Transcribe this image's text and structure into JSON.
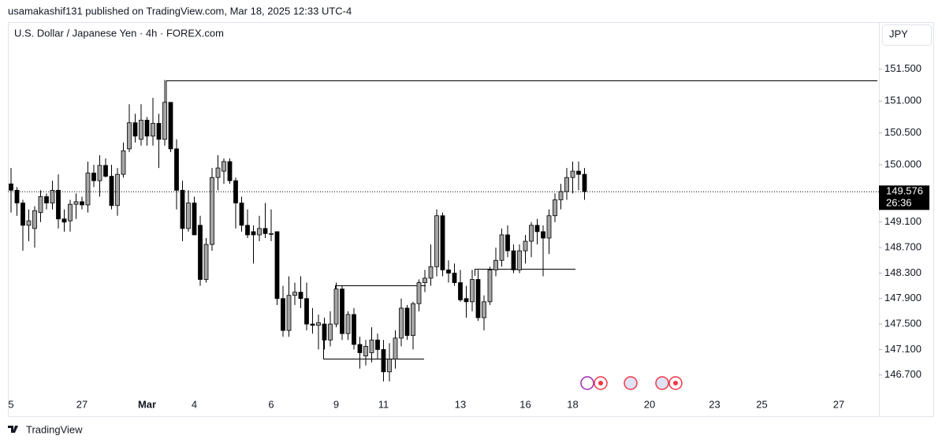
{
  "header": {
    "published": "usamakashif131 published on TradingView.com, Mar 18, 2025 12:33 UTC-4"
  },
  "footer": {
    "brand": "TradingView"
  },
  "chart_data": {
    "type": "candlestick",
    "title": "U.S. Dollar / Japanese Yen · 4h · FOREX.com",
    "currency": "JPY",
    "up_color": "#a5a5a5",
    "down_color": "#000000",
    "last_price": 149.576,
    "countdown": "26:36",
    "ylim": [
      146.4,
      152.24
    ],
    "yticks": [
      {
        "value": 146.7,
        "label": "146.700"
      },
      {
        "value": 147.1,
        "label": "147.100"
      },
      {
        "value": 147.5,
        "label": "147.500"
      },
      {
        "value": 147.9,
        "label": "147.900"
      },
      {
        "value": 148.3,
        "label": "148.300"
      },
      {
        "value": 148.7,
        "label": "148.700"
      },
      {
        "value": 149.1,
        "label": "149.100"
      },
      {
        "value": 150.0,
        "label": "150.000"
      },
      {
        "value": 150.5,
        "label": "150.500"
      },
      {
        "value": 151.0,
        "label": "151.000"
      },
      {
        "value": 151.5,
        "label": "151.500"
      }
    ],
    "categories": [
      "5",
      null,
      null,
      null,
      null,
      null,
      null,
      null,
      null,
      null,
      null,
      null,
      "27",
      null,
      null,
      null,
      null,
      null,
      null,
      null,
      null,
      null,
      null,
      "Mar",
      null,
      null,
      null,
      null,
      null,
      null,
      null,
      "4",
      null,
      null,
      null,
      null,
      null,
      null,
      null,
      null,
      null,
      null,
      null,
      null,
      "6",
      null,
      null,
      null,
      null,
      null,
      null,
      null,
      null,
      null,
      null,
      "9",
      null,
      null,
      null,
      null,
      null,
      null,
      null,
      "11",
      null,
      null,
      null,
      null,
      null,
      null,
      null,
      null,
      null,
      null,
      null,
      null,
      "13",
      null,
      null,
      null,
      null,
      null,
      null,
      null,
      null,
      null,
      null,
      "16",
      null,
      null,
      null,
      null,
      null,
      null,
      null,
      "18",
      null,
      null,
      null,
      null,
      null,
      null,
      null,
      null,
      null,
      null,
      null,
      null,
      "20",
      null,
      null,
      null,
      null,
      null,
      null,
      null,
      null,
      null,
      null,
      "23",
      null,
      null,
      null,
      null,
      null,
      null,
      null,
      "25",
      null,
      null,
      null,
      null,
      null,
      null,
      null,
      null,
      null,
      null,
      null,
      null,
      "27"
    ],
    "open": [
      149.7,
      149.6,
      149.4,
      149.05,
      149.0,
      149.25,
      149.5,
      149.4,
      149.6,
      149.15,
      149.12,
      149.38,
      149.42,
      149.37,
      149.87,
      149.75,
      149.99,
      149.82,
      149.36,
      149.85,
      150.25,
      150.66,
      150.4,
      150.7,
      150.45,
      150.65,
      150.4,
      150.98,
      150.25,
      149.6,
      149.0,
      149.4,
      149.05,
      148.2,
      148.75,
      149.8,
      149.9,
      150.05,
      149.75,
      149.4,
      149.05,
      148.95,
      148.9,
      149.0,
      148.92,
      148.95,
      147.9,
      147.4,
      147.95,
      148.0,
      147.9,
      147.5,
      147.48,
      147.5,
      147.25,
      147.5,
      148.05,
      147.35,
      147.65,
      147.18,
      147.0,
      147.05,
      147.25,
      147.1,
      146.75,
      146.95,
      147.28,
      147.75,
      147.32,
      147.82,
      148.15,
      148.22,
      148.4,
      149.2,
      148.35,
      148.3,
      148.15,
      147.9,
      147.85,
      148.2,
      147.6,
      147.85,
      148.35,
      148.5,
      148.9,
      148.65,
      148.35,
      148.65,
      148.8,
      149.05,
      148.95,
      148.85,
      149.2,
      149.45,
      149.58,
      149.8,
      149.9,
      149.85,
      null,
      null,
      null,
      null,
      null,
      null,
      null,
      null,
      null,
      null,
      null,
      null,
      null,
      null,
      null,
      null,
      null,
      null,
      null,
      null,
      null,
      null,
      null,
      null,
      null,
      null,
      null,
      null,
      null,
      null,
      null,
      null,
      null,
      null,
      null,
      null,
      null,
      null,
      null,
      null,
      null,
      null,
      null
    ],
    "high": [
      149.95,
      149.65,
      149.45,
      149.3,
      149.35,
      149.6,
      149.55,
      149.75,
      149.85,
      149.3,
      149.45,
      149.55,
      149.5,
      150.05,
      150.0,
      150.15,
      150.1,
      150.0,
      149.95,
      150.35,
      150.95,
      150.8,
      150.95,
      150.75,
      151.05,
      150.8,
      151.33,
      150.98,
      150.4,
      149.75,
      149.6,
      149.5,
      149.2,
      148.85,
      149.95,
      150.15,
      150.1,
      150.1,
      149.8,
      149.5,
      149.3,
      149.05,
      149.2,
      149.4,
      149.3,
      148.95,
      148.1,
      148.25,
      148.15,
      148.25,
      148.15,
      147.75,
      147.65,
      147.6,
      147.7,
      148.15,
      148.1,
      147.7,
      147.75,
      147.3,
      147.25,
      147.45,
      147.35,
      147.25,
      147.2,
      147.4,
      147.9,
      147.8,
      147.85,
      148.2,
      148.35,
      148.75,
      149.3,
      149.25,
      148.5,
      148.45,
      148.35,
      148.1,
      148.35,
      148.35,
      147.95,
      148.4,
      148.7,
      149.0,
      149.05,
      148.75,
      148.75,
      148.9,
      149.1,
      149.15,
      149.05,
      149.3,
      149.55,
      149.7,
      149.95,
      150.05,
      150.05,
      149.95,
      null,
      null,
      null,
      null,
      null,
      null,
      null,
      null,
      null,
      null,
      null,
      null,
      null,
      null,
      null,
      null,
      null,
      null,
      null,
      null,
      null,
      null,
      null,
      null,
      null,
      null,
      null,
      null,
      null,
      null,
      null,
      null,
      null,
      null,
      null,
      null,
      null,
      null,
      null,
      null,
      null,
      null,
      null
    ],
    "low": [
      149.25,
      149.2,
      148.65,
      148.8,
      148.7,
      149.1,
      149.3,
      149.3,
      149.0,
      148.95,
      148.95,
      149.15,
      149.3,
      149.25,
      149.65,
      149.5,
      149.8,
      149.3,
      149.2,
      149.8,
      150.2,
      150.35,
      150.3,
      150.3,
      150.3,
      149.95,
      150.3,
      150.2,
      149.3,
      148.8,
      148.95,
      148.9,
      148.1,
      148.15,
      148.65,
      149.6,
      149.7,
      149.7,
      149.0,
      148.95,
      148.85,
      148.45,
      148.8,
      148.85,
      148.8,
      147.8,
      147.3,
      147.3,
      147.8,
      147.75,
      147.4,
      147.35,
      147.1,
      147.1,
      147.15,
      147.45,
      147.25,
      147.25,
      147.1,
      146.8,
      146.85,
      146.9,
      146.95,
      146.6,
      146.6,
      146.8,
      147.15,
      147.25,
      147.1,
      147.7,
      148.0,
      148.1,
      148.25,
      148.25,
      148.15,
      148.1,
      147.85,
      147.6,
      147.7,
      147.55,
      147.4,
      147.8,
      148.25,
      148.4,
      148.55,
      148.3,
      148.3,
      148.45,
      148.55,
      148.75,
      148.25,
      148.6,
      149.1,
      149.3,
      149.45,
      149.55,
      149.6,
      149.45,
      null,
      null,
      null,
      null,
      null,
      null,
      null,
      null,
      null,
      null,
      null,
      null,
      null,
      null,
      null,
      null,
      null,
      null,
      null,
      null,
      null,
      null,
      null,
      null,
      null,
      null,
      null,
      null,
      null,
      null,
      null,
      null,
      null,
      null,
      null,
      null,
      null,
      null,
      null,
      null,
      null,
      null,
      null
    ],
    "close": [
      149.6,
      149.4,
      149.05,
      149.12,
      149.28,
      149.5,
      149.4,
      149.6,
      149.15,
      149.1,
      149.38,
      149.42,
      149.37,
      149.87,
      149.75,
      149.99,
      149.82,
      149.36,
      149.85,
      150.22,
      150.66,
      150.45,
      150.7,
      150.45,
      150.65,
      150.4,
      150.98,
      150.25,
      149.6,
      149.0,
      149.4,
      148.9,
      148.2,
      148.75,
      149.8,
      149.95,
      150.05,
      149.75,
      149.4,
      149.05,
      148.9,
      148.9,
      149.0,
      148.92,
      148.92,
      147.9,
      147.4,
      147.95,
      148.0,
      147.9,
      147.5,
      147.48,
      147.52,
      147.25,
      147.5,
      148.05,
      147.35,
      147.65,
      147.18,
      147.05,
      147.15,
      147.25,
      147.1,
      146.75,
      146.95,
      147.28,
      147.75,
      147.32,
      147.82,
      148.15,
      148.22,
      148.4,
      149.2,
      148.35,
      148.3,
      148.15,
      147.88,
      147.85,
      148.2,
      147.6,
      147.85,
      148.35,
      148.5,
      148.9,
      148.65,
      148.35,
      148.65,
      148.8,
      149.05,
      148.95,
      148.85,
      149.2,
      149.45,
      149.58,
      149.8,
      149.9,
      149.85,
      149.58,
      null,
      null,
      null,
      null,
      null,
      null,
      null,
      null,
      null,
      null,
      null,
      null,
      null,
      null,
      null,
      null,
      null,
      null,
      null,
      null,
      null,
      null,
      null,
      null,
      null,
      null,
      null,
      null,
      null,
      null,
      null,
      null,
      null,
      null,
      null,
      null,
      null,
      null,
      null,
      null,
      null,
      null,
      null
    ]
  }
}
